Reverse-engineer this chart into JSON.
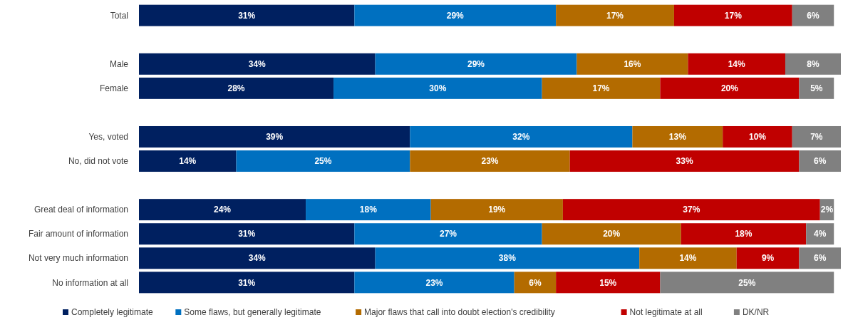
{
  "chart_data": {
    "type": "bar",
    "orientation": "horizontal",
    "stacked": true,
    "legend": "bottom",
    "categories": [
      "Total",
      null,
      "Male",
      "Female",
      null,
      "Yes, voted",
      "No, did not vote",
      null,
      "Great deal of information",
      "Fair amount of information",
      "Not very much information",
      "No information at all"
    ],
    "series": [
      {
        "name": "Completely legitimate",
        "color": "#002060",
        "values": [
          31,
          null,
          34,
          28,
          null,
          39,
          14,
          null,
          24,
          31,
          34,
          31
        ],
        "value_labels": [
          "31%",
          null,
          "34%",
          "28%",
          null,
          "39%",
          "14%",
          null,
          "24%",
          "31%",
          "34%",
          "31%"
        ]
      },
      {
        "name": "Some flaws, but generally legitimate",
        "color": "#0070c0",
        "values": [
          29,
          null,
          29,
          30,
          null,
          32,
          25,
          null,
          18,
          27,
          38,
          23
        ],
        "value_labels": [
          "29%",
          null,
          "29%",
          "30%",
          null,
          "32%",
          "25%",
          null,
          "18%",
          "27%",
          "38%",
          "23%"
        ]
      },
      {
        "name": "Major flaws that call into doubt election's credibility",
        "color": "#b36b00",
        "values": [
          17,
          null,
          16,
          17,
          null,
          13,
          23,
          null,
          19,
          20,
          14,
          6
        ],
        "value_labels": [
          "17%",
          null,
          "16%",
          "17%",
          null,
          "13%",
          "23%",
          null,
          "19%",
          "20%",
          "14%",
          "6%"
        ]
      },
      {
        "name": "Not legitimate at all",
        "color": "#c00000",
        "values": [
          17,
          null,
          14,
          20,
          null,
          10,
          33,
          null,
          37,
          18,
          9,
          15
        ],
        "value_labels": [
          "17%",
          null,
          "14%",
          "20%",
          null,
          "10%",
          "33%",
          null,
          "37%",
          "18%",
          "9%",
          "15%"
        ]
      },
      {
        "name": "DK/NR",
        "color": "#808080",
        "values": [
          6,
          null,
          8,
          5,
          null,
          7,
          6,
          null,
          2,
          4,
          6,
          25
        ],
        "value_labels": [
          "6%",
          null,
          "8%",
          "5%",
          null,
          "7%",
          "6%",
          null,
          "2%",
          "4%",
          "6%",
          "25%"
        ]
      }
    ]
  }
}
